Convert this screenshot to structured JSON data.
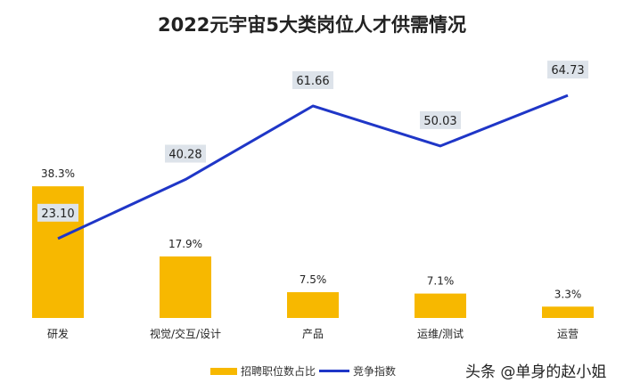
{
  "chart_data": {
    "type": "bar+line",
    "title": "2022元宇宙5大类岗位人才供需情况",
    "categories": [
      "研发",
      "视觉/交互/设计",
      "产品",
      "运维/测试",
      "运营"
    ],
    "series": [
      {
        "name": "招聘职位数占比",
        "type": "bar",
        "values": [
          38.3,
          17.9,
          7.5,
          7.1,
          3.3
        ],
        "labels": [
          "38.3%",
          "17.9%",
          "7.5%",
          "7.1%",
          "3.3%"
        ],
        "color": "#f7b800"
      },
      {
        "name": "竞争指数",
        "type": "line",
        "values": [
          23.1,
          40.28,
          61.66,
          50.03,
          64.73
        ],
        "labels": [
          "23.10",
          "40.28",
          "61.66",
          "50.03",
          "64.73"
        ],
        "color": "#1f36c7"
      }
    ],
    "legend": "bottom",
    "grid": false
  },
  "watermark": "头条 @单身的赵小姐"
}
